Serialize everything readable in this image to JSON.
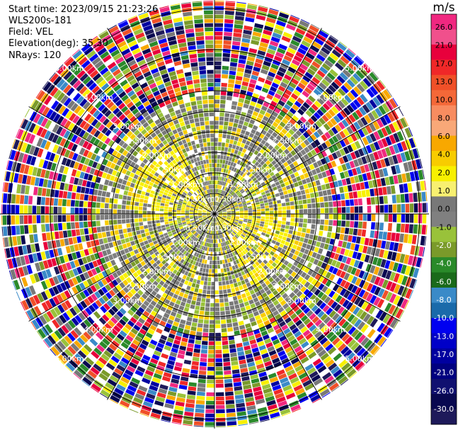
{
  "info": {
    "start_time": "Start time: 2023/09/15 21:23:26",
    "instrument": "WLS200s-181",
    "field": "Field: VEL",
    "elevation": "Elevation(deg): 35.30",
    "nrays": "NRays: 120"
  },
  "chart_data": {
    "type": "heatmap",
    "projection": "polar (PPI)",
    "field": "VEL",
    "n_rays": 120,
    "range_rings_km": [
      0.5,
      1.0,
      1.5,
      2.0,
      2.5,
      3.0,
      4.0,
      5.0
    ],
    "range_ring_labels": [
      "0.50km",
      "1.00km",
      "1.50km",
      "2.00km",
      "2.50km",
      "3.00km",
      "4.00km",
      "5.00km"
    ],
    "colorbar": {
      "unit": "m/s",
      "ticks": [
        "26.0",
        "21.0",
        "17.0",
        "13.0",
        "10.0",
        "8.0",
        "6.0",
        "4.0",
        "2.0",
        "1.0",
        "0.0",
        "-1.0",
        "-2.0",
        "-4.0",
        "-6.0",
        "-8.0",
        "-10.0",
        "-13.0",
        "-17.0",
        "-21.0",
        "-26.0",
        "-30.0"
      ],
      "colors": [
        "#f02880",
        "#f0508c",
        "#e8003c",
        "#f02828",
        "#f05028",
        "#f46838",
        "#f88c60",
        "#f8a878",
        "#f8a800",
        "#f8cc00",
        "#f8f000",
        "#f8f070",
        "#787878",
        "#808080",
        "#99c23a",
        "#7a9a2a",
        "#2a8a2a",
        "#1a6a1a",
        "#3a8ac8",
        "#1a6aaa",
        "#0000f0",
        "#0000c8",
        "#0000a0",
        "#000080",
        "#101070",
        "#080850",
        "#1e1a5a"
      ]
    }
  }
}
